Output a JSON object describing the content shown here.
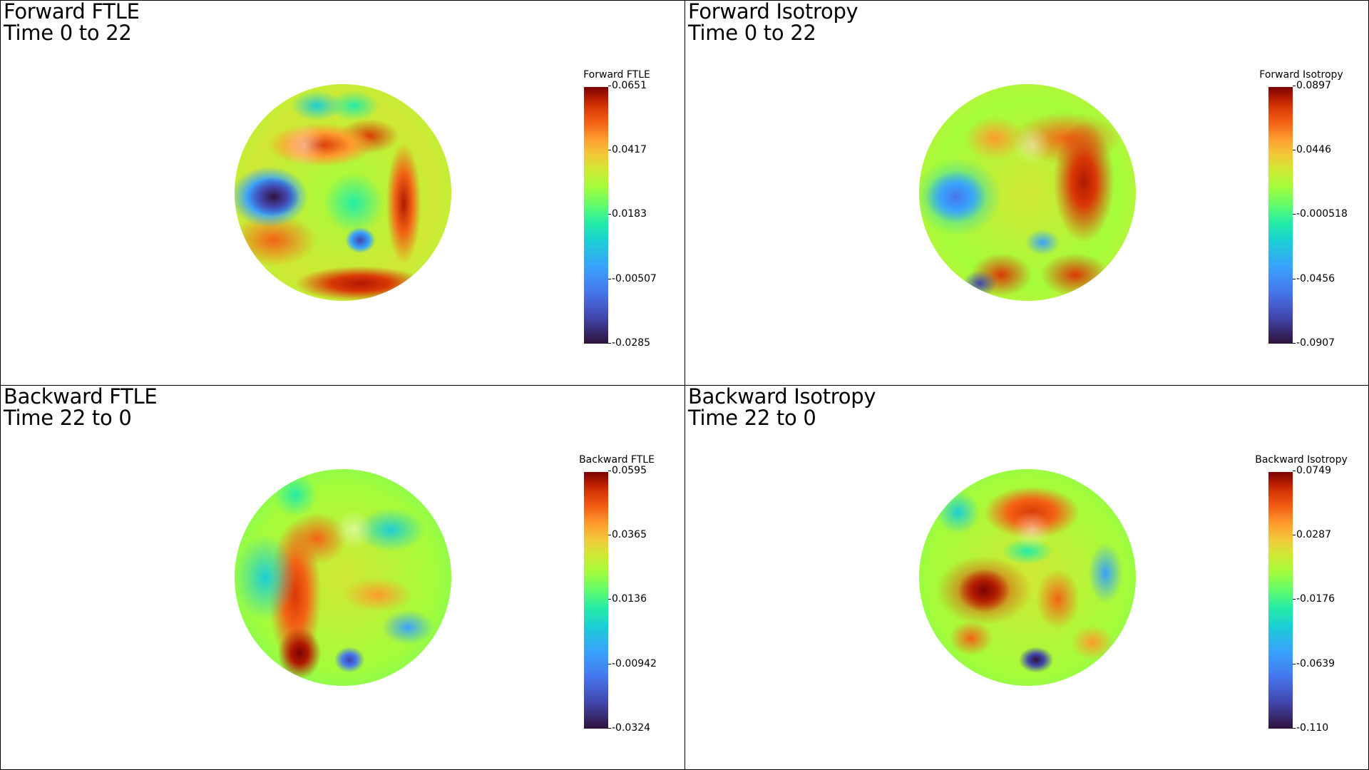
{
  "panels": [
    {
      "title_line1": "Forward FTLE",
      "title_line2": "Time 0 to 22",
      "colorbar_title": "Forward FTLE",
      "ticks": [
        "0.0651",
        "0.0417",
        "0.0183",
        "-0.00507",
        "-0.0285"
      ]
    },
    {
      "title_line1": "Forward Isotropy",
      "title_line2": "Time 0 to 22",
      "colorbar_title": "Forward Isotropy",
      "ticks": [
        "0.0897",
        "0.0446",
        "-0.000518",
        "-0.0456",
        "-0.0907"
      ]
    },
    {
      "title_line1": "Backward FTLE",
      "title_line2": "Time 22 to 0",
      "colorbar_title": "Backward FTLE",
      "ticks": [
        "0.0595",
        "0.0365",
        "0.0136",
        "-0.00942",
        "-0.0324"
      ]
    },
    {
      "title_line1": "Backward Isotropy",
      "title_line2": "Time 22 to 0",
      "colorbar_title": "Backward Isotropy",
      "ticks": [
        "0.0749",
        "0.0287",
        "-0.0176",
        "-0.0639",
        "-0.110"
      ]
    }
  ],
  "colormap": "turbo"
}
